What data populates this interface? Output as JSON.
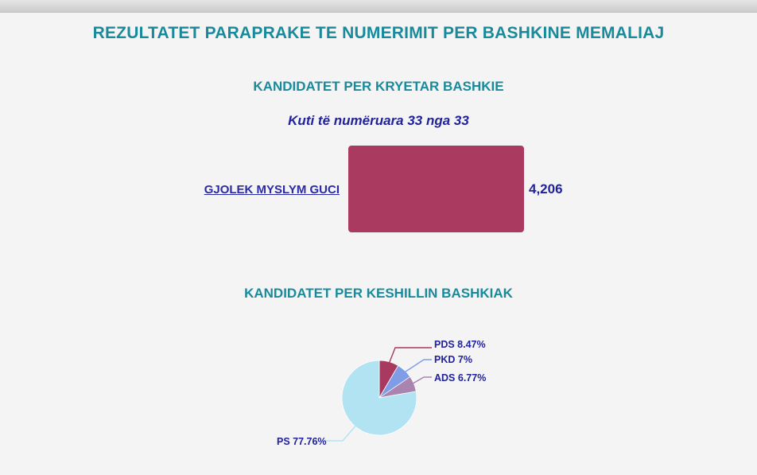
{
  "page": {
    "title": "REZULTATET PARAPRAKE TE NUMERIMIT PER BASHKINE MEMALIAJ"
  },
  "mayor_section": {
    "heading": "KANDIDATET PER KRYETAR BASHKIE",
    "boxes_counted_note": "Kuti të numëruara 33 nga 33"
  },
  "council_section": {
    "heading": "KANDIDATET PER KESHILLIN BASHKIAK"
  },
  "colors": {
    "heading_teal": "#188a9b",
    "navy_text": "#22229b",
    "bar_crimson": "#aa3a5f",
    "background": "#f4f4f4"
  },
  "chart_data": [
    {
      "type": "bar",
      "orientation": "horizontal",
      "title": "KANDIDATET PER KRYETAR BASHKIE",
      "subtitle": "Kuti të numëruara 33 nga 33",
      "categories": [
        "GJOLEK MYSLYM GUCI"
      ],
      "values": [
        4206
      ],
      "value_labels": [
        "4,206"
      ],
      "bar_color": "#aa3a5f",
      "xlim": [
        0,
        4206
      ],
      "grid": false
    },
    {
      "type": "pie",
      "title": "KANDIDATET PER KESHILLIN BASHKIAK",
      "legend_position": "callout-labels",
      "slices": [
        {
          "name": "PDS",
          "value": 8.47,
          "label": "PDS 8.47%",
          "color": "#a93a5f"
        },
        {
          "name": "PKD",
          "value": 7,
          "label": "PKD 7%",
          "color": "#7f9de6"
        },
        {
          "name": "ADS",
          "value": 6.77,
          "label": "ADS 6.77%",
          "color": "#a884ae"
        },
        {
          "name": "PS",
          "value": 77.76,
          "label": "PS 77.76%",
          "color": "#b2e3f3"
        }
      ]
    }
  ]
}
